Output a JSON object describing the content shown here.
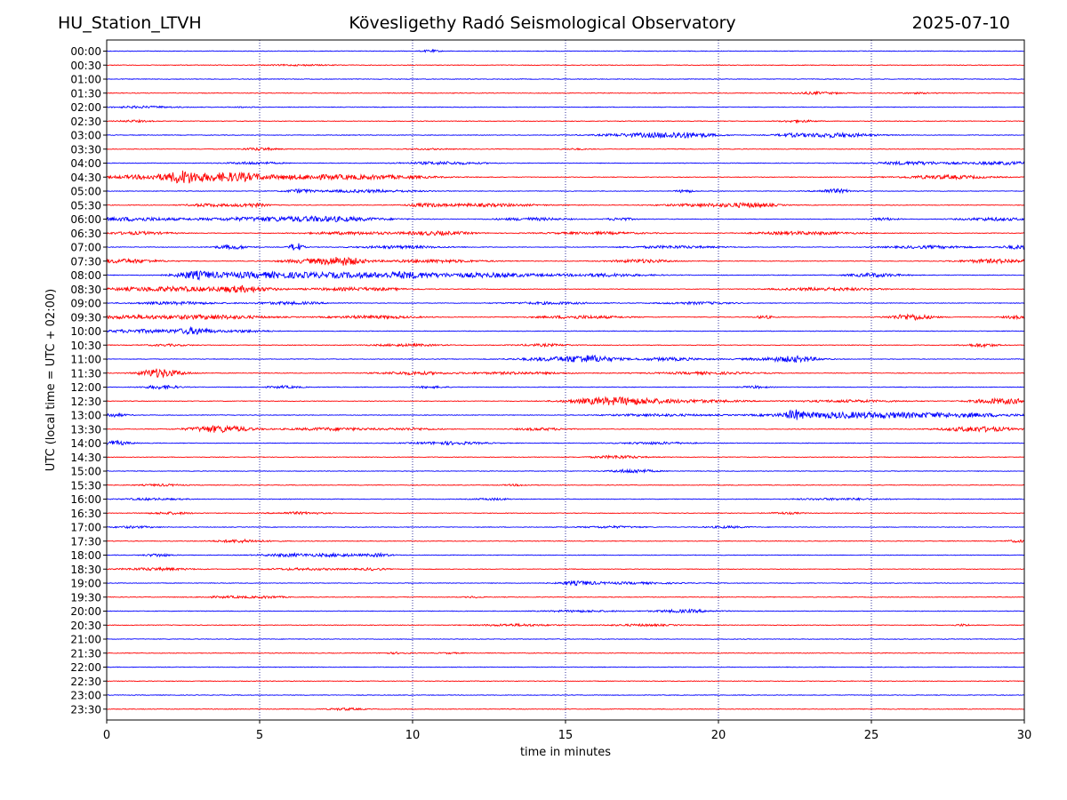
{
  "header": {
    "station": "HU_Station_LTVH",
    "observatory": "Kövesligethy Radó Seismological Observatory",
    "date": "2025-07-10"
  },
  "chart_data": {
    "type": "line",
    "title": "Kövesligethy Radó Seismological Observatory",
    "xlabel": "time in minutes",
    "ylabel": "UTC (local time = UTC + 02:00)",
    "xlim": [
      0,
      30
    ],
    "xticks": [
      0,
      5,
      10,
      15,
      20,
      25,
      30
    ],
    "x_gridlines": [
      5,
      10,
      15,
      20,
      25
    ],
    "grid": "vertical dotted",
    "trace_colors": [
      "#0000ff",
      "#ff0000"
    ],
    "series": [
      {
        "label": "00:00",
        "color": "#0000ff",
        "bursts": [
          [
            10.6,
            0.2,
            1.2
          ]
        ]
      },
      {
        "label": "00:30",
        "color": "#ff0000",
        "bursts": [
          [
            6.3,
            0.8,
            0.6
          ]
        ]
      },
      {
        "label": "01:00",
        "color": "#0000ff",
        "bursts": []
      },
      {
        "label": "01:30",
        "color": "#ff0000",
        "bursts": [
          [
            23.2,
            0.6,
            1.2
          ],
          [
            26.5,
            0.5,
            0.6
          ]
        ]
      },
      {
        "label": "02:00",
        "color": "#0000ff",
        "bursts": [
          [
            1.2,
            0.8,
            1.0
          ],
          [
            4.5,
            0.3,
            0.5
          ]
        ]
      },
      {
        "label": "02:30",
        "color": "#ff0000",
        "bursts": [
          [
            0.9,
            0.4,
            1.0
          ],
          [
            22.6,
            0.4,
            1.2
          ]
        ]
      },
      {
        "label": "03:00",
        "color": "#0000ff",
        "bursts": [
          [
            17.5,
            1.0,
            1.8
          ],
          [
            18.9,
            0.7,
            2.6
          ],
          [
            22.3,
            0.3,
            1.2
          ],
          [
            23.7,
            0.9,
            2.4
          ]
        ]
      },
      {
        "label": "03:30",
        "color": "#ff0000",
        "bursts": [
          [
            5.0,
            0.4,
            1.4
          ],
          [
            10.5,
            0.5,
            0.6
          ],
          [
            15.3,
            0.3,
            0.6
          ]
        ]
      },
      {
        "label": "04:00",
        "color": "#0000ff",
        "bursts": [
          [
            4.8,
            0.6,
            1.3
          ],
          [
            11.0,
            0.9,
            1.5
          ],
          [
            26.4,
            0.9,
            1.8
          ],
          [
            29.3,
            0.8,
            1.6
          ]
        ]
      },
      {
        "label": "04:30",
        "color": "#ff0000",
        "bursts": [
          [
            1.8,
            1.2,
            2.6
          ],
          [
            2.5,
            0.3,
            4.2
          ],
          [
            3.6,
            0.9,
            3.0
          ],
          [
            4.4,
            0.5,
            2.0
          ],
          [
            6.6,
            1.3,
            2.4
          ],
          [
            9.2,
            1.2,
            1.6
          ],
          [
            27.4,
            1.0,
            2.0
          ]
        ]
      },
      {
        "label": "05:00",
        "color": "#0000ff",
        "bursts": [
          [
            6.3,
            0.3,
            1.8
          ],
          [
            8.5,
            1.2,
            1.4
          ],
          [
            18.9,
            0.2,
            1.6
          ],
          [
            23.8,
            0.4,
            2.2
          ]
        ]
      },
      {
        "label": "05:30",
        "color": "#ff0000",
        "bursts": [
          [
            3.3,
            0.5,
            1.6
          ],
          [
            4.7,
            0.4,
            2.0
          ],
          [
            10.4,
            0.4,
            1.6
          ],
          [
            12.4,
            1.2,
            1.6
          ],
          [
            19.6,
            1.0,
            1.5
          ],
          [
            21.1,
            0.6,
            2.0
          ]
        ]
      },
      {
        "label": "06:00",
        "color": "#0000ff",
        "bursts": [
          [
            0.8,
            1.0,
            2.0
          ],
          [
            5.2,
            1.6,
            2.0
          ],
          [
            7.5,
            1.2,
            2.0
          ],
          [
            13.9,
            0.8,
            1.5
          ],
          [
            16.8,
            0.3,
            1.6
          ],
          [
            25.4,
            0.3,
            1.4
          ],
          [
            29.0,
            0.8,
            1.6
          ]
        ]
      },
      {
        "label": "06:30",
        "color": "#ff0000",
        "bursts": [
          [
            1.0,
            0.8,
            1.5
          ],
          [
            8.0,
            1.0,
            1.5
          ],
          [
            10.8,
            0.8,
            2.0
          ],
          [
            16.0,
            1.2,
            1.2
          ],
          [
            22.8,
            1.2,
            1.6
          ]
        ]
      },
      {
        "label": "07:00",
        "color": "#0000ff",
        "bursts": [
          [
            4.1,
            0.4,
            2.2
          ],
          [
            6.2,
            0.15,
            4.8
          ],
          [
            9.6,
            1.0,
            1.4
          ],
          [
            18.5,
            1.0,
            1.4
          ],
          [
            26.9,
            1.0,
            1.4
          ],
          [
            29.8,
            0.4,
            2.0
          ]
        ]
      },
      {
        "label": "07:30",
        "color": "#ff0000",
        "bursts": [
          [
            0.6,
            0.8,
            2.2
          ],
          [
            6.5,
            0.6,
            2.0
          ],
          [
            7.7,
            0.5,
            4.6
          ],
          [
            10.7,
            1.2,
            1.6
          ],
          [
            17.5,
            0.7,
            1.8
          ],
          [
            29.1,
            0.8,
            2.2
          ]
        ]
      },
      {
        "label": "08:00",
        "color": "#0000ff",
        "bursts": [
          [
            2.9,
            0.4,
            3.2
          ],
          [
            4.2,
            1.2,
            2.6
          ],
          [
            6.2,
            1.0,
            2.2
          ],
          [
            8.3,
            1.0,
            2.6
          ],
          [
            9.9,
            0.6,
            2.4
          ],
          [
            12.3,
            1.4,
            2.4
          ],
          [
            16.3,
            1.0,
            1.6
          ],
          [
            25.1,
            0.6,
            2.0
          ]
        ]
      },
      {
        "label": "08:30",
        "color": "#ff0000",
        "bursts": [
          [
            1.2,
            1.0,
            1.8
          ],
          [
            2.6,
            0.8,
            1.6
          ],
          [
            4.4,
            0.7,
            3.4
          ],
          [
            8.2,
            1.2,
            1.6
          ],
          [
            23.6,
            1.2,
            1.6
          ]
        ]
      },
      {
        "label": "09:00",
        "color": "#0000ff",
        "bursts": [
          [
            2.3,
            1.0,
            1.4
          ],
          [
            6.0,
            0.8,
            1.4
          ],
          [
            14.5,
            1.0,
            1.2
          ],
          [
            19.3,
            0.8,
            1.2
          ]
        ]
      },
      {
        "label": "09:30",
        "color": "#ff0000",
        "bursts": [
          [
            0.8,
            1.0,
            1.8
          ],
          [
            3.5,
            1.2,
            2.2
          ],
          [
            8.7,
            1.0,
            1.6
          ],
          [
            15.5,
            1.0,
            1.6
          ],
          [
            21.5,
            0.2,
            1.6
          ],
          [
            26.3,
            0.5,
            3.2
          ],
          [
            29.7,
            0.3,
            1.6
          ]
        ]
      },
      {
        "label": "10:00",
        "color": "#0000ff",
        "bursts": [
          [
            1.2,
            1.0,
            1.8
          ],
          [
            2.9,
            0.4,
            3.4
          ],
          [
            4.5,
            0.6,
            1.3
          ]
        ]
      },
      {
        "label": "10:30",
        "color": "#ff0000",
        "bursts": [
          [
            2.0,
            0.5,
            1.0
          ],
          [
            9.8,
            0.8,
            1.2
          ],
          [
            14.3,
            0.6,
            1.2
          ],
          [
            28.6,
            0.4,
            1.8
          ]
        ]
      },
      {
        "label": "11:00",
        "color": "#0000ff",
        "bursts": [
          [
            15.8,
            0.6,
            3.4
          ],
          [
            14.6,
            0.9,
            1.8
          ],
          [
            18.4,
            0.8,
            1.6
          ],
          [
            21.8,
            0.8,
            1.4
          ],
          [
            22.6,
            0.5,
            2.4
          ]
        ]
      },
      {
        "label": "11:30",
        "color": "#ff0000",
        "bursts": [
          [
            1.6,
            0.4,
            3.6
          ],
          [
            2.1,
            0.5,
            1.8
          ],
          [
            10.0,
            0.8,
            1.6
          ],
          [
            13.4,
            1.2,
            1.2
          ],
          [
            19.6,
            1.2,
            1.2
          ]
        ]
      },
      {
        "label": "12:00",
        "color": "#0000ff",
        "bursts": [
          [
            1.8,
            0.4,
            2.0
          ],
          [
            5.8,
            0.4,
            1.2
          ],
          [
            10.6,
            0.4,
            1.0
          ],
          [
            21.2,
            0.3,
            1.2
          ]
        ]
      },
      {
        "label": "12:30",
        "color": "#ff0000",
        "bursts": [
          [
            17.0,
            1.0,
            3.4
          ],
          [
            16.0,
            0.8,
            1.6
          ],
          [
            19.5,
            1.0,
            1.3
          ],
          [
            24.3,
            1.2,
            1.2
          ],
          [
            29.3,
            0.7,
            3.0
          ]
        ]
      },
      {
        "label": "13:00",
        "color": "#0000ff",
        "bursts": [
          [
            0.2,
            0.3,
            2.0
          ],
          [
            22.5,
            0.2,
            4.0
          ],
          [
            23.5,
            1.4,
            2.6
          ],
          [
            26.0,
            1.4,
            2.2
          ],
          [
            28.4,
            1.2,
            1.6
          ],
          [
            18.0,
            1.2,
            1.2
          ]
        ]
      },
      {
        "label": "13:30",
        "color": "#ff0000",
        "bursts": [
          [
            3.7,
            0.7,
            3.8
          ],
          [
            7.4,
            1.0,
            1.6
          ],
          [
            10.0,
            0.6,
            1.2
          ],
          [
            14.2,
            0.6,
            1.3
          ],
          [
            28.5,
            0.8,
            2.8
          ]
        ]
      },
      {
        "label": "14:00",
        "color": "#0000ff",
        "bursts": [
          [
            0.2,
            0.4,
            2.4
          ],
          [
            11.2,
            0.8,
            1.6
          ],
          [
            18.0,
            0.8,
            1.2
          ]
        ]
      },
      {
        "label": "14:30",
        "color": "#ff0000",
        "bursts": [
          [
            16.7,
            0.6,
            1.6
          ]
        ]
      },
      {
        "label": "15:00",
        "color": "#0000ff",
        "bursts": [
          [
            17.2,
            0.5,
            2.0
          ]
        ]
      },
      {
        "label": "15:30",
        "color": "#ff0000",
        "bursts": [
          [
            1.8,
            0.5,
            1.0
          ],
          [
            13.4,
            0.3,
            0.8
          ]
        ]
      },
      {
        "label": "16:00",
        "color": "#0000ff",
        "bursts": [
          [
            1.5,
            0.7,
            1.0
          ],
          [
            12.6,
            0.4,
            1.0
          ],
          [
            24.0,
            1.0,
            1.0
          ]
        ]
      },
      {
        "label": "16:30",
        "color": "#ff0000",
        "bursts": [
          [
            2.1,
            0.5,
            1.2
          ],
          [
            6.3,
            0.6,
            1.2
          ],
          [
            22.2,
            0.4,
            1.0
          ]
        ]
      },
      {
        "label": "17:00",
        "color": "#0000ff",
        "bursts": [
          [
            0.9,
            0.5,
            1.0
          ],
          [
            16.5,
            0.7,
            1.0
          ],
          [
            20.3,
            0.5,
            1.0
          ]
        ]
      },
      {
        "label": "17:30",
        "color": "#ff0000",
        "bursts": [
          [
            4.4,
            0.6,
            1.6
          ],
          [
            29.8,
            0.3,
            1.2
          ]
        ]
      },
      {
        "label": "18:00",
        "color": "#0000ff",
        "bursts": [
          [
            1.7,
            0.3,
            1.6
          ],
          [
            5.9,
            0.6,
            1.6
          ],
          [
            7.5,
            0.6,
            1.6
          ],
          [
            8.9,
            0.3,
            1.6
          ]
        ]
      },
      {
        "label": "18:30",
        "color": "#ff0000",
        "bursts": [
          [
            1.6,
            0.8,
            1.4
          ],
          [
            6.5,
            1.0,
            1.0
          ],
          [
            8.7,
            0.3,
            1.2
          ]
        ]
      },
      {
        "label": "19:00",
        "color": "#0000ff",
        "bursts": [
          [
            15.4,
            0.4,
            1.8
          ],
          [
            17.0,
            1.2,
            1.0
          ]
        ]
      },
      {
        "label": "19:30",
        "color": "#ff0000",
        "bursts": [
          [
            4.0,
            0.6,
            1.0
          ],
          [
            5.3,
            0.4,
            1.0
          ],
          [
            12.0,
            0.2,
            0.8
          ]
        ]
      },
      {
        "label": "20:00",
        "color": "#0000ff",
        "bursts": [
          [
            15.5,
            0.8,
            1.0
          ],
          [
            18.9,
            0.7,
            1.6
          ]
        ]
      },
      {
        "label": "20:30",
        "color": "#ff0000",
        "bursts": [
          [
            13.4,
            0.8,
            1.2
          ],
          [
            17.5,
            0.8,
            1.0
          ],
          [
            28.0,
            0.2,
            1.0
          ]
        ]
      },
      {
        "label": "21:00",
        "color": "#0000ff",
        "bursts": []
      },
      {
        "label": "21:30",
        "color": "#ff0000",
        "bursts": [
          [
            9.5,
            0.3,
            0.8
          ],
          [
            11.2,
            0.3,
            0.6
          ]
        ]
      },
      {
        "label": "22:00",
        "color": "#0000ff",
        "bursts": []
      },
      {
        "label": "22:30",
        "color": "#ff0000",
        "bursts": []
      },
      {
        "label": "23:00",
        "color": "#0000ff",
        "bursts": []
      },
      {
        "label": "23:30",
        "color": "#ff0000",
        "bursts": [
          [
            7.8,
            0.4,
            1.2
          ]
        ]
      }
    ]
  }
}
